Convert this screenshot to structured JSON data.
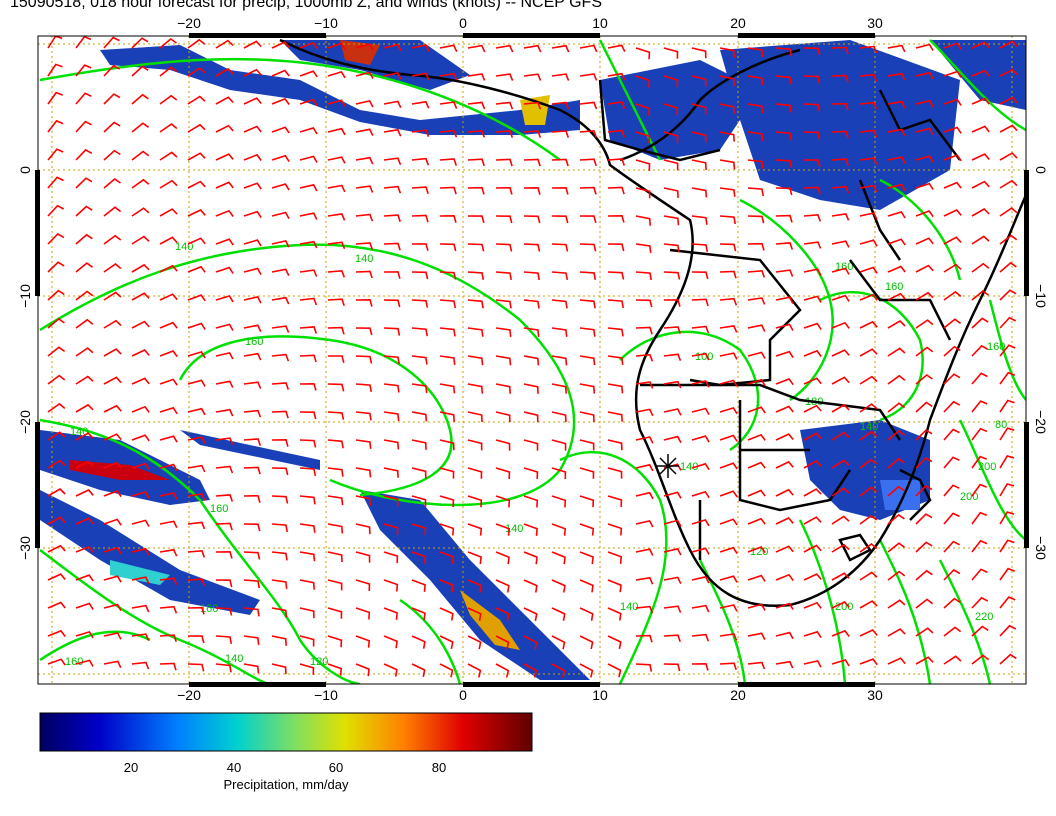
{
  "title": "15090518, 018 hour forecast for precip, 1000mb Z, and winds (knots) -- NCEP GFS",
  "map": {
    "lon_ticks": [
      "−20",
      "−10",
      "0",
      "10",
      "20",
      "30"
    ],
    "lat_ticks": [
      "0",
      "−10",
      "−20",
      "−30"
    ],
    "contour_labels": [
      "140",
      "140",
      "160",
      "140",
      "160",
      "140",
      "160",
      "140",
      "120",
      "100",
      "140",
      "120",
      "140",
      "160",
      "160",
      "200",
      "200",
      "220",
      "180",
      "200",
      "80",
      "160",
      "140",
      "160"
    ],
    "colors": {
      "wind": "#ff0000",
      "height": "#00ff00",
      "coast": "#000000",
      "grid": "#c8a000"
    }
  },
  "colorbar": {
    "ticks": [
      "20",
      "40",
      "60",
      "80"
    ],
    "label": "Precipitation, mm/day",
    "stops": [
      "#000060",
      "#0000c8",
      "#0080ff",
      "#00d0d0",
      "#80e060",
      "#e0e000",
      "#ff8000",
      "#e00000",
      "#600000"
    ]
  }
}
